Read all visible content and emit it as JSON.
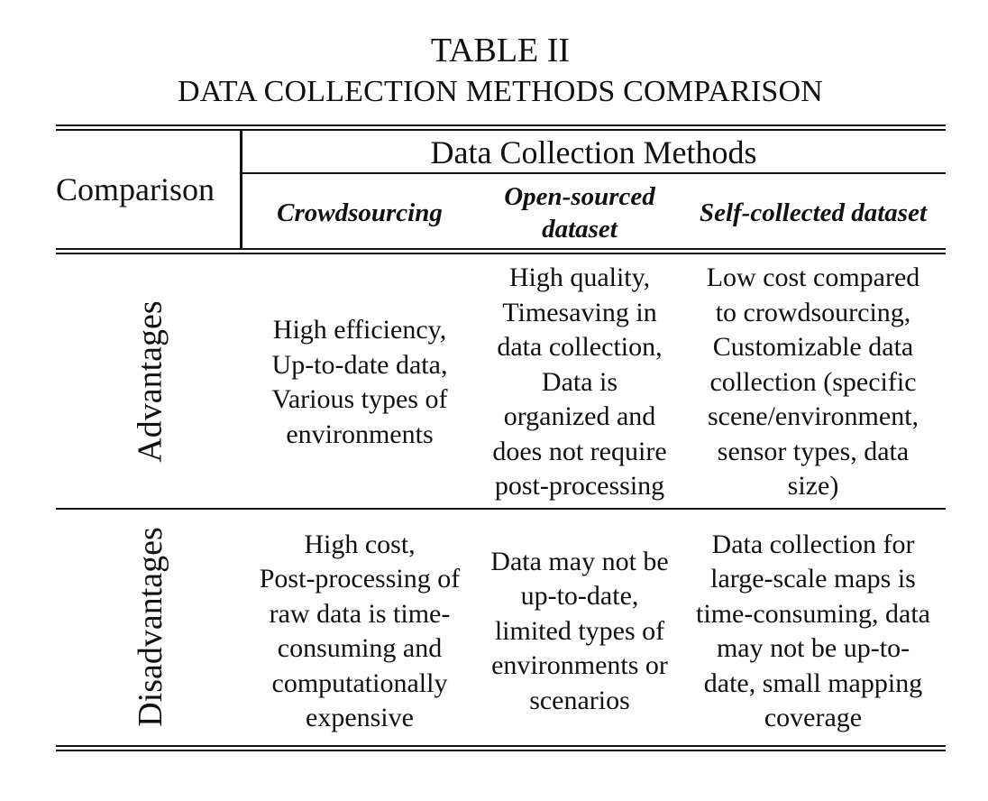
{
  "caption": {
    "number": "TABLE II",
    "title": "DATA COLLECTION METHODS COMPARISON"
  },
  "table": {
    "corner_label": "Comparison",
    "group_header": "Data Collection Methods",
    "columns": [
      "Crowdsourcing",
      "Open-sourced\ndataset",
      "Self-collected dataset"
    ],
    "rows": [
      {
        "label": "Advantages",
        "cells": [
          "High efficiency,\nUp-to-date data,\nVarious types of\nenvironments",
          "High quality,\nTimesaving in\ndata collection,\nData is\norganized and\ndoes not require\npost-processing",
          "Low cost compared\nto crowdsourcing,\nCustomizable data\ncollection (specific\nscene/environment,\nsensor types, data\nsize)"
        ]
      },
      {
        "label": "Disadvantages",
        "cells": [
          "High cost,\nPost-processing of\nraw data is time-\nconsuming and\ncomputationally\nexpensive",
          "Data may not be\nup-to-date,\nlimited types of\nenvironments or\nscenarios",
          "Data collection for\nlarge-scale maps is\ntime-consuming, data\nmay not be up-to-\ndate, small mapping\ncoverage"
        ]
      }
    ]
  }
}
